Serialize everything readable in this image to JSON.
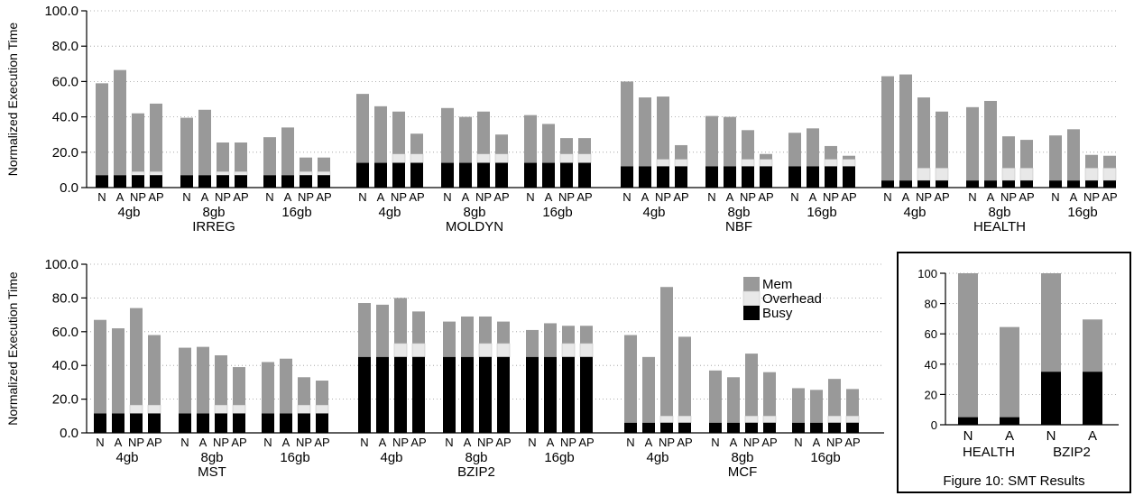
{
  "colors": {
    "mem": "#999999",
    "overhead": "#e8e8e8",
    "busy": "#000000"
  },
  "caption": "Figure 10: SMT Results",
  "chart_data": [
    {
      "type": "bar",
      "stacked": true,
      "ylabel": "Normalized Execution Time",
      "ylim": [
        0,
        100
      ],
      "yticks": [
        "0.0",
        "20.0",
        "40.0",
        "60.0",
        "80.0",
        "100.0"
      ],
      "grid": true,
      "bar_labels": [
        "N",
        "A",
        "NP",
        "AP"
      ],
      "benchmarks": [
        {
          "name": "IRREG",
          "groups": [
            {
              "label": "4gb",
              "total": [
                59,
                66.5,
                42,
                47.5
              ],
              "busy": [
                7,
                7,
                7,
                7
              ],
              "overhead": [
                0,
                0,
                2,
                2
              ]
            },
            {
              "label": "8gb",
              "total": [
                39.5,
                44,
                25.5,
                25.5
              ],
              "busy": [
                7,
                7,
                7,
                7
              ],
              "overhead": [
                0,
                0,
                2,
                2
              ]
            },
            {
              "label": "16gb",
              "total": [
                28.5,
                34,
                17,
                17
              ],
              "busy": [
                7,
                7,
                7,
                7
              ],
              "overhead": [
                0,
                0,
                2,
                2
              ]
            }
          ]
        },
        {
          "name": "MOLDYN",
          "groups": [
            {
              "label": "4gb",
              "total": [
                53,
                46,
                43,
                30.5
              ],
              "busy": [
                14,
                14,
                14,
                14
              ],
              "overhead": [
                0,
                0,
                5,
                5
              ]
            },
            {
              "label": "8gb",
              "total": [
                45,
                40,
                43,
                30
              ],
              "busy": [
                14,
                14,
                14,
                14
              ],
              "overhead": [
                0,
                0,
                5,
                5
              ]
            },
            {
              "label": "16gb",
              "total": [
                41,
                36,
                28,
                28
              ],
              "busy": [
                14,
                14,
                14,
                14
              ],
              "overhead": [
                0,
                0,
                5,
                5
              ]
            }
          ]
        },
        {
          "name": "NBF",
          "groups": [
            {
              "label": "4gb",
              "total": [
                60,
                51,
                51.5,
                24
              ],
              "busy": [
                12,
                12,
                12,
                12
              ],
              "overhead": [
                0,
                0,
                4,
                4
              ]
            },
            {
              "label": "8gb",
              "total": [
                40.5,
                40,
                32.5,
                19
              ],
              "busy": [
                12,
                12,
                12,
                12
              ],
              "overhead": [
                0,
                0,
                4,
                4
              ]
            },
            {
              "label": "16gb",
              "total": [
                31,
                33.5,
                23.5,
                18
              ],
              "busy": [
                12,
                12,
                12,
                12
              ],
              "overhead": [
                0,
                0,
                4,
                4
              ]
            }
          ]
        },
        {
          "name": "HEALTH",
          "groups": [
            {
              "label": "4gb",
              "total": [
                63,
                64,
                51,
                43
              ],
              "busy": [
                4,
                4,
                4,
                4
              ],
              "overhead": [
                0,
                0,
                7,
                7
              ]
            },
            {
              "label": "8gb",
              "total": [
                45.5,
                49,
                29,
                27
              ],
              "busy": [
                4,
                4,
                4,
                4
              ],
              "overhead": [
                0,
                0,
                7,
                7
              ]
            },
            {
              "label": "16gb",
              "total": [
                29.5,
                33,
                18.5,
                18
              ],
              "busy": [
                4,
                4,
                4,
                4
              ],
              "overhead": [
                0,
                0,
                7,
                7
              ]
            }
          ]
        }
      ]
    },
    {
      "type": "bar",
      "stacked": true,
      "ylabel": "Normalized Execution Time",
      "ylim": [
        0,
        100
      ],
      "yticks": [
        "0.0",
        "20.0",
        "40.0",
        "60.0",
        "80.0",
        "100.0"
      ],
      "grid": true,
      "bar_labels": [
        "N",
        "A",
        "NP",
        "AP"
      ],
      "legend": [
        "Mem",
        "Overhead",
        "Busy"
      ],
      "legend_position": "top-right",
      "benchmarks": [
        {
          "name": "MST",
          "groups": [
            {
              "label": "4gb",
              "total": [
                67,
                62,
                74,
                58
              ],
              "busy": [
                11.5,
                11.5,
                11.5,
                11.5
              ],
              "overhead": [
                0,
                0,
                5,
                5
              ]
            },
            {
              "label": "8gb",
              "total": [
                50.5,
                51,
                46,
                39
              ],
              "busy": [
                11.5,
                11.5,
                11.5,
                11.5
              ],
              "overhead": [
                0,
                0,
                5,
                5
              ]
            },
            {
              "label": "16gb",
              "total": [
                42,
                44,
                33,
                31
              ],
              "busy": [
                11.5,
                11.5,
                11.5,
                11.5
              ],
              "overhead": [
                0,
                0,
                5,
                5
              ]
            }
          ]
        },
        {
          "name": "BZIP2",
          "groups": [
            {
              "label": "4gb",
              "total": [
                77,
                76,
                80,
                72
              ],
              "busy": [
                45,
                45,
                45,
                45
              ],
              "overhead": [
                0,
                0,
                8,
                8
              ]
            },
            {
              "label": "8gb",
              "total": [
                66,
                69,
                69,
                66
              ],
              "busy": [
                45,
                45,
                45,
                45
              ],
              "overhead": [
                0,
                0,
                8,
                8
              ]
            },
            {
              "label": "16gb",
              "total": [
                61,
                65,
                63.5,
                63.5
              ],
              "busy": [
                45,
                45,
                45,
                45
              ],
              "overhead": [
                0,
                0,
                8,
                8
              ]
            }
          ]
        },
        {
          "name": "MCF",
          "groups": [
            {
              "label": "4gb",
              "total": [
                58,
                45,
                86.5,
                57
              ],
              "busy": [
                6,
                6,
                6,
                6
              ],
              "overhead": [
                0,
                0,
                4,
                4
              ]
            },
            {
              "label": "8gb",
              "total": [
                37,
                33,
                47,
                36
              ],
              "busy": [
                6,
                6,
                6,
                6
              ],
              "overhead": [
                0,
                0,
                4,
                4
              ]
            },
            {
              "label": "16gb",
              "total": [
                26.5,
                25.5,
                32,
                26
              ],
              "busy": [
                6,
                6,
                6,
                6
              ],
              "overhead": [
                0,
                0,
                4,
                4
              ]
            }
          ]
        }
      ]
    },
    {
      "type": "bar",
      "stacked": true,
      "ylim": [
        0,
        100
      ],
      "yticks": [
        "0",
        "20",
        "40",
        "60",
        "80",
        "100"
      ],
      "grid": true,
      "benchmarks": [
        {
          "name": "HEALTH",
          "bar_labels": [
            "N",
            "A"
          ],
          "total": [
            100,
            64.5
          ],
          "busy": [
            5,
            5
          ]
        },
        {
          "name": "BZIP2",
          "bar_labels": [
            "N",
            "A"
          ],
          "total": [
            100,
            69.5
          ],
          "busy": [
            35,
            35
          ]
        }
      ]
    }
  ]
}
